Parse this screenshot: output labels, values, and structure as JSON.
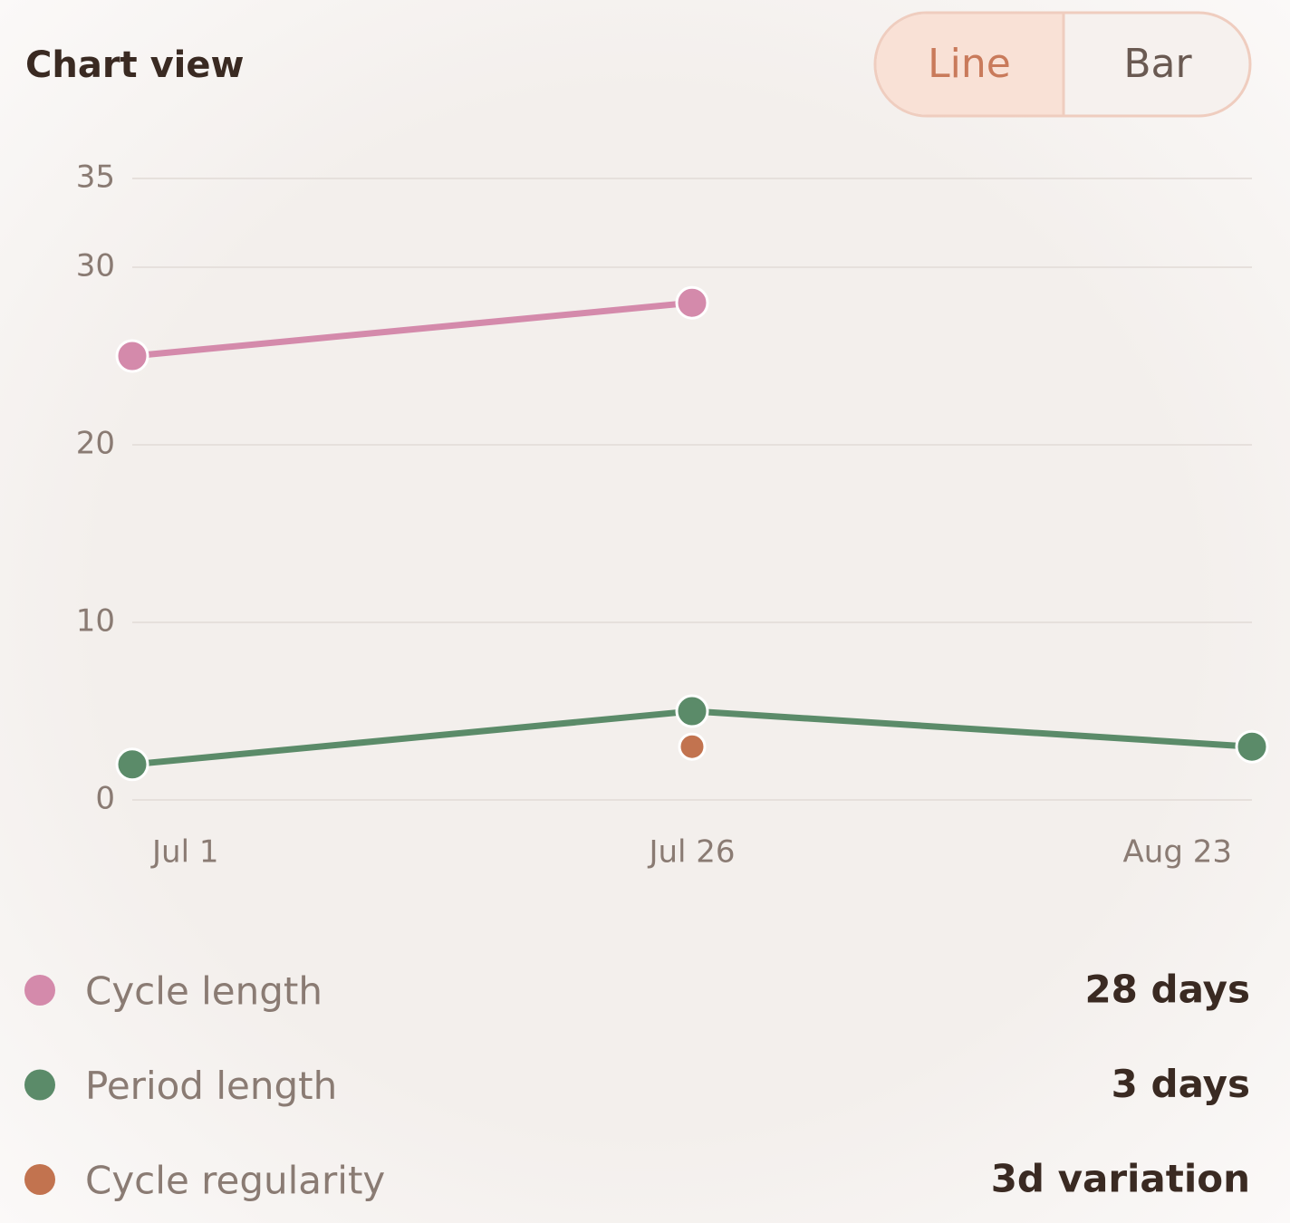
{
  "header": {
    "title": "Chart view",
    "toggle": [
      "Line",
      "Bar"
    ],
    "active": "Line"
  },
  "chart_data": {
    "type": "line",
    "categories": [
      "Jul 1",
      "Jul 26",
      "Aug 23"
    ],
    "ylim": [
      0,
      35
    ],
    "yticks": [
      0,
      10,
      20,
      30,
      35
    ],
    "grid": true,
    "series": [
      {
        "name": "Cycle length",
        "color": "#d48aab",
        "values": [
          25,
          28,
          null
        ],
        "summary": "28 days"
      },
      {
        "name": "Period length",
        "color": "#5b8b69",
        "values": [
          2,
          5,
          3
        ],
        "summary": "3 days"
      },
      {
        "name": "Cycle regularity",
        "color": "#c2734f",
        "values": [
          null,
          3,
          null
        ],
        "summary": "3d variation"
      }
    ]
  }
}
